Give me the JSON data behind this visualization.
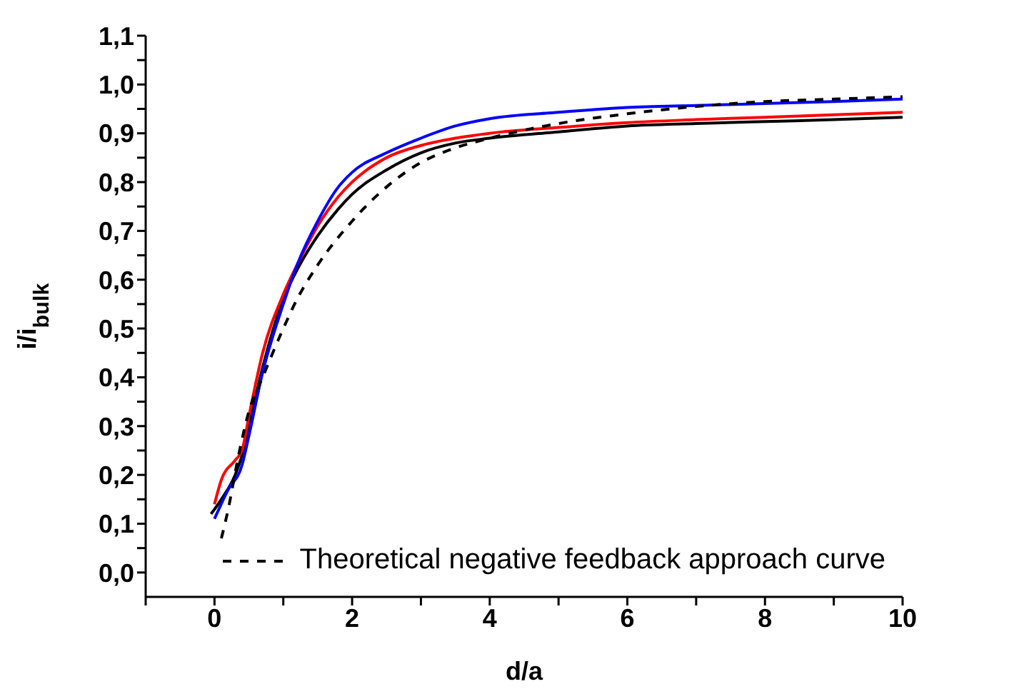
{
  "chart_data": {
    "type": "line",
    "xlabel": "d/a",
    "ylabel": "i/i$_{bulk}$",
    "xlim": [
      -1,
      10
    ],
    "ylim": [
      -0.05,
      1.1
    ],
    "xticks": [
      {
        "value": -1,
        "label": null
      },
      {
        "value": 0,
        "label": "0"
      },
      {
        "value": 1,
        "label": null
      },
      {
        "value": 2,
        "label": "2"
      },
      {
        "value": 3,
        "label": null
      },
      {
        "value": 4,
        "label": "4"
      },
      {
        "value": 5,
        "label": null
      },
      {
        "value": 6,
        "label": "6"
      },
      {
        "value": 7,
        "label": null
      },
      {
        "value": 8,
        "label": "8"
      },
      {
        "value": 9,
        "label": null
      },
      {
        "value": 10,
        "label": "10"
      }
    ],
    "yticks": [
      {
        "value": 0,
        "label": "0,0"
      },
      {
        "value": 0.05,
        "label": null
      },
      {
        "value": 0.1,
        "label": "0,1"
      },
      {
        "value": 0.15,
        "label": null
      },
      {
        "value": 0.2,
        "label": "0,2"
      },
      {
        "value": 0.25,
        "label": null
      },
      {
        "value": 0.3,
        "label": "0,3"
      },
      {
        "value": 0.35,
        "label": null
      },
      {
        "value": 0.4,
        "label": "0,4"
      },
      {
        "value": 0.45,
        "label": null
      },
      {
        "value": 0.5,
        "label": "0,5"
      },
      {
        "value": 0.55,
        "label": null
      },
      {
        "value": 0.6,
        "label": "0,6"
      },
      {
        "value": 0.65,
        "label": null
      },
      {
        "value": 0.7,
        "label": "0,7"
      },
      {
        "value": 0.75,
        "label": null
      },
      {
        "value": 0.8,
        "label": "0,8"
      },
      {
        "value": 0.85,
        "label": null
      },
      {
        "value": 0.9,
        "label": "0,9"
      },
      {
        "value": 0.95,
        "label": null
      },
      {
        "value": 1.0,
        "label": "1,0"
      },
      {
        "value": 1.05,
        "label": null
      },
      {
        "value": 1.1,
        "label": "1,1"
      }
    ],
    "grid": false,
    "legend": "bottom right",
    "marker": "none",
    "series": [
      {
        "color": "#000000",
        "x": [
          -0.05,
          0.1,
          0.3,
          0.4,
          0.5,
          0.7,
          1.0,
          1.2,
          1.5,
          1.8,
          2,
          2.5,
          3,
          3.5,
          4,
          5,
          6,
          7,
          8,
          9,
          10
        ],
        "values": [
          0.12,
          0.15,
          0.2,
          0.24,
          0.3,
          0.42,
          0.56,
          0.62,
          0.69,
          0.745,
          0.775,
          0.825,
          0.86,
          0.88,
          0.89,
          0.903,
          0.915,
          0.92,
          0.924,
          0.928,
          0.933
        ]
      },
      {
        "color": "#ff0000",
        "x": [
          0,
          0.1,
          0.3,
          0.4,
          0.5,
          0.7,
          1.0,
          1.2,
          1.5,
          1.8,
          2,
          2.5,
          3,
          3.5,
          4,
          5,
          6,
          7,
          8,
          9,
          10
        ],
        "values": [
          0.14,
          0.19,
          0.23,
          0.25,
          0.32,
          0.45,
          0.57,
          0.63,
          0.71,
          0.77,
          0.8,
          0.85,
          0.875,
          0.89,
          0.9,
          0.912,
          0.922,
          0.928,
          0.933,
          0.938,
          0.943
        ]
      },
      {
        "color": "#0000ff",
        "x": [
          0,
          0.2,
          0.4,
          0.5,
          0.7,
          1.0,
          1.2,
          1.5,
          1.8,
          2,
          2.5,
          3,
          3.5,
          4,
          5,
          6,
          7,
          8,
          9,
          10
        ],
        "values": [
          0.11,
          0.17,
          0.22,
          0.28,
          0.41,
          0.55,
          0.63,
          0.72,
          0.79,
          0.82,
          0.86,
          0.89,
          0.915,
          0.93,
          0.943,
          0.953,
          0.957,
          0.961,
          0.965,
          0.97
        ]
      },
      {
        "name": "Theoretical negative feedback approach curve",
        "color": "#000000",
        "line_style": "dashed",
        "x": [
          0.1,
          0.2,
          0.35,
          0.5,
          0.7,
          1.0,
          1.2,
          1.5,
          2,
          2.5,
          3,
          3.5,
          4,
          5,
          6,
          7,
          8,
          9,
          10
        ],
        "values": [
          0.07,
          0.13,
          0.24,
          0.33,
          0.4,
          0.5,
          0.56,
          0.63,
          0.72,
          0.79,
          0.84,
          0.87,
          0.89,
          0.92,
          0.94,
          0.955,
          0.965,
          0.97,
          0.975
        ]
      }
    ]
  }
}
